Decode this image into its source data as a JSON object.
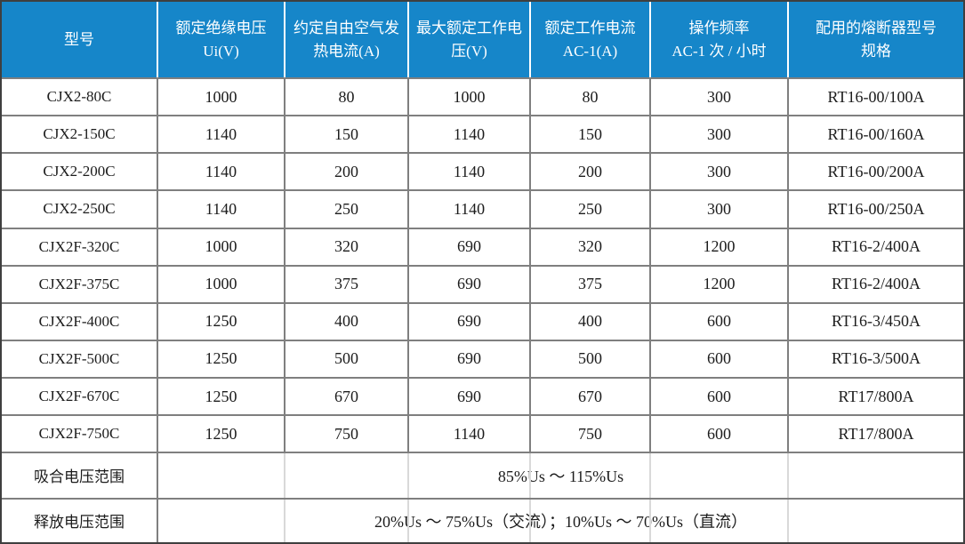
{
  "table": {
    "columns": [
      {
        "label": "型号"
      },
      {
        "label": "额定绝缘电压 Ui(V)"
      },
      {
        "label": "约定自由空气发热电流(A)"
      },
      {
        "label": "最大额定工作电压(V)"
      },
      {
        "label": "额定工作电流 AC-1(A)"
      },
      {
        "label": "操作频率\nAC-1 次 / 小时"
      },
      {
        "label": "配用的熔断器型号规格"
      }
    ],
    "rows": [
      [
        "CJX2-80C",
        "1000",
        "80",
        "1000",
        "80",
        "300",
        "RT16-00/100A"
      ],
      [
        "CJX2-150C",
        "1140",
        "150",
        "1140",
        "150",
        "300",
        "RT16-00/160A"
      ],
      [
        "CJX2-200C",
        "1140",
        "200",
        "1140",
        "200",
        "300",
        "RT16-00/200A"
      ],
      [
        "CJX2-250C",
        "1140",
        "250",
        "1140",
        "250",
        "300",
        "RT16-00/250A"
      ],
      [
        "CJX2F-320C",
        "1000",
        "320",
        "690",
        "320",
        "1200",
        "RT16-2/400A"
      ],
      [
        "CJX2F-375C",
        "1000",
        "375",
        "690",
        "375",
        "1200",
        "RT16-2/400A"
      ],
      [
        "CJX2F-400C",
        "1250",
        "400",
        "690",
        "400",
        "600",
        "RT16-3/450A"
      ],
      [
        "CJX2F-500C",
        "1250",
        "500",
        "690",
        "500",
        "600",
        "RT16-3/500A"
      ],
      [
        "CJX2F-670C",
        "1250",
        "670",
        "690",
        "670",
        "600",
        "RT17/800A"
      ],
      [
        "CJX2F-750C",
        "1250",
        "750",
        "1140",
        "750",
        "600",
        "RT17/800A"
      ]
    ],
    "footer_rows": [
      {
        "label": "吸合电压范围",
        "value": "85%Us ～ 115%Us"
      },
      {
        "label": "释放电压范围",
        "value": "20%Us ～ 75%Us（交流）；10%Us ～ 70%Us（直流）"
      }
    ],
    "colors": {
      "header_bg": "#1686C9",
      "header_text": "#FFFFFF",
      "grid": "#7F7F7F",
      "outer_border": "#3F3F3F",
      "body_text": "#1C1C1C",
      "faint_separator": "#D9D9D9"
    }
  }
}
